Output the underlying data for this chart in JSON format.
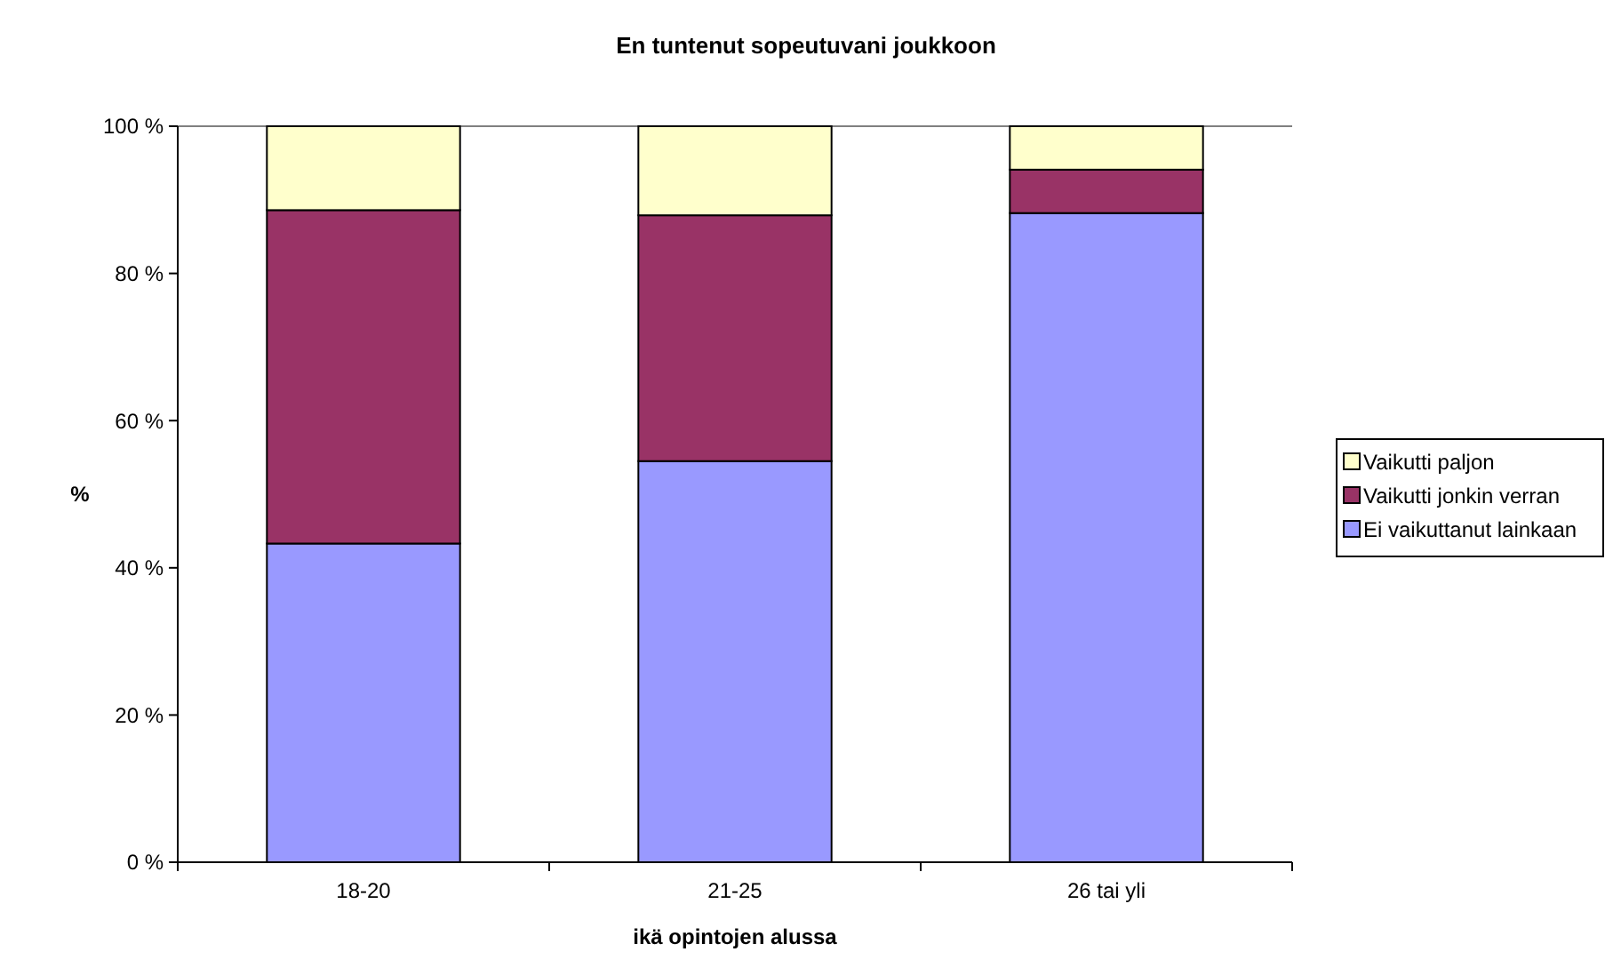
{
  "chart_data": {
    "type": "bar",
    "stacked": true,
    "title": "En tuntenut sopeutuvani joukkoon",
    "xlabel": "ikä opintojen alussa",
    "ylabel": "%",
    "categories": [
      "18-20",
      "21-25",
      "26 tai yli"
    ],
    "series": [
      {
        "name": "Ei vaikuttanut lainkaan",
        "color": "#9999ff",
        "values": [
          43.3,
          54.5,
          88.2
        ]
      },
      {
        "name": "Vaikutti jonkin verran",
        "color": "#993366",
        "values": [
          45.3,
          33.4,
          5.9
        ]
      },
      {
        "name": "Vaikutti paljon",
        "color": "#ffffcc",
        "values": [
          11.4,
          12.1,
          5.9
        ]
      }
    ],
    "ylim": [
      0,
      100
    ],
    "yticks": [
      {
        "value": 0,
        "label": "0 %"
      },
      {
        "value": 20,
        "label": "20 %"
      },
      {
        "value": 40,
        "label": "40 %"
      },
      {
        "value": 60,
        "label": "60 %"
      },
      {
        "value": 80,
        "label": "80 %"
      },
      {
        "value": 100,
        "label": "100 %"
      }
    ],
    "grid": false,
    "legend": "right"
  }
}
